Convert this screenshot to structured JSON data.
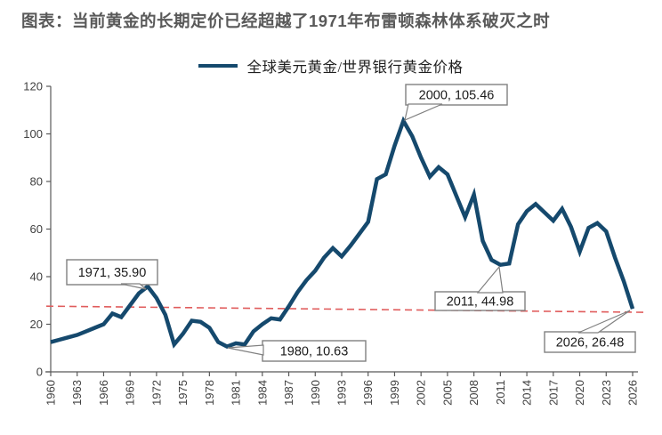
{
  "header": {
    "title": "图表：当前黄金的长期定价已经超越了1971年布雷顿森林体系破灭之时"
  },
  "legend": {
    "label": "全球美元黄金/世界银行黄金价格"
  },
  "colors": {
    "line": "#15496d",
    "trend_dash": "#e05c5c",
    "axis": "#595959",
    "tick_text": "#404040",
    "callout_border": "#808080",
    "callout_text": "#1a1a1a",
    "title_text": "#595959"
  },
  "chart_data": {
    "type": "line",
    "title": "图表：当前黄金的长期定价已经超越了1971年布雷顿森林体系破灭之时",
    "xlabel": "",
    "ylabel": "",
    "xlim": [
      1960,
      2026
    ],
    "ylim": [
      0,
      120
    ],
    "grid": false,
    "legend_position": "top-center",
    "x_ticks": [
      1960,
      1963,
      1966,
      1969,
      1972,
      1975,
      1978,
      1981,
      1984,
      1987,
      1990,
      1993,
      1996,
      1999,
      2002,
      2005,
      2008,
      2011,
      2014,
      2017,
      2020,
      2023,
      2026
    ],
    "y_ticks": [
      0,
      20,
      40,
      60,
      80,
      100,
      120
    ],
    "series": [
      {
        "name": "全球美元黄金/世界银行黄金价格",
        "x": [
          1960,
          1961,
          1962,
          1963,
          1964,
          1965,
          1966,
          1967,
          1968,
          1969,
          1970,
          1971,
          1972,
          1973,
          1974,
          1975,
          1976,
          1977,
          1978,
          1979,
          1980,
          1981,
          1982,
          1983,
          1984,
          1985,
          1986,
          1987,
          1988,
          1989,
          1990,
          1991,
          1992,
          1993,
          1994,
          1995,
          1996,
          1997,
          1998,
          1999,
          2000,
          2001,
          2002,
          2003,
          2004,
          2005,
          2006,
          2007,
          2008,
          2009,
          2010,
          2011,
          2012,
          2013,
          2014,
          2015,
          2016,
          2017,
          2018,
          2019,
          2020,
          2021,
          2022,
          2023,
          2024,
          2025,
          2026
        ],
        "values": [
          12.5,
          13.5,
          14.5,
          15.5,
          17,
          18.5,
          20,
          24.5,
          23,
          28,
          33,
          35.9,
          31,
          24,
          11.5,
          16,
          21.5,
          21,
          18.5,
          12.5,
          10.63,
          12,
          11.5,
          17,
          20,
          22.5,
          22,
          27.5,
          33.5,
          38.5,
          42.5,
          48,
          52,
          48.5,
          53,
          58,
          63,
          81,
          83,
          95,
          105.46,
          99,
          90,
          82,
          86,
          83,
          74,
          65,
          74.5,
          55,
          47,
          44.98,
          45.5,
          62,
          67.5,
          70.5,
          67,
          63.5,
          68.5,
          61,
          50.5,
          60.5,
          62.5,
          59,
          48,
          38,
          26.48
        ]
      }
    ],
    "trendline": {
      "style": "dashed",
      "x_start": 1959.5,
      "y_start": 27.6,
      "x_end": 2027.7,
      "y_end": 25.0
    },
    "annotations": [
      {
        "text": "1971, 35.90",
        "year": 1971,
        "value": 35.9
      },
      {
        "text": "1980, 10.63",
        "year": 1980,
        "value": 10.63
      },
      {
        "text": "2000, 105.46",
        "year": 2000,
        "value": 105.46
      },
      {
        "text": "2011, 44.98",
        "year": 2011,
        "value": 44.98
      },
      {
        "text": "2026, 26.48",
        "year": 2026,
        "value": 26.48
      }
    ]
  }
}
